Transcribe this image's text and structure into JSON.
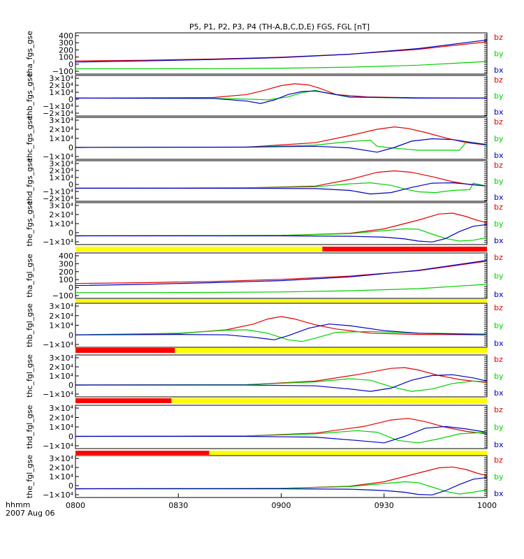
{
  "title": "P5, P1, P2, P3, P4 (TH-A,B,C,D,E) FGS, FGL [nT]",
  "footer": {
    "axis_label": "hhmm",
    "date": "2007 Aug 06"
  },
  "colors": {
    "bz": "#e00000",
    "by": "#00d000",
    "bx": "#0000c0",
    "status_yellow": "#ffff00",
    "status_red": "#ff0000",
    "axis": "#000000"
  },
  "chart_data": {
    "type": "line",
    "x_ticks": [
      "0800",
      "0830",
      "0900",
      "0930",
      "1000"
    ],
    "x_range_minutes": [
      0,
      120
    ],
    "panels": [
      {
        "name": "tha_fgs_gse",
        "ylim": [
          -100,
          450
        ],
        "yticks": [
          "400",
          "300",
          "200",
          "100",
          "0",
          "−100"
        ],
        "series": [
          {
            "name": "bz",
            "x": [
              0,
              20,
              40,
              60,
              80,
              100,
              120
            ],
            "y": [
              75,
              85,
              100,
              125,
              165,
              230,
              330
            ]
          },
          {
            "name": "by",
            "x": [
              0,
              20,
              40,
              60,
              80,
              100,
              120
            ],
            "y": [
              -30,
              -30,
              -28,
              -22,
              -8,
              18,
              68
            ]
          },
          {
            "name": "bx",
            "x": [
              0,
              20,
              40,
              60,
              80,
              100,
              120
            ],
            "y": [
              60,
              75,
              95,
              120,
              165,
              240,
              355
            ]
          }
        ]
      },
      {
        "name": "thb_fgs_gse",
        "ylim": [
          -30000,
          38000
        ],
        "yticks": [
          "3×10⁴",
          "2×10⁴",
          "1×10⁴",
          "0",
          "−1×10⁴",
          "−2×10⁴"
        ],
        "series": [
          {
            "name": "bz",
            "x": [
              0,
              40,
              50,
              55,
              60,
              64,
              68,
              71,
              76,
              85,
              100,
              120
            ],
            "y": [
              0,
              1000,
              6000,
              13000,
              21000,
              24000,
              22000,
              17000,
              6000,
              2000,
              500,
              0
            ]
          },
          {
            "name": "by",
            "x": [
              0,
              40,
              52,
              56,
              62,
              66,
              70,
              72,
              80,
              100,
              120
            ],
            "y": [
              0,
              -500,
              -2000,
              -3000,
              2000,
              9000,
              13000,
              10000,
              1500,
              0,
              0
            ]
          },
          {
            "name": "bx",
            "x": [
              0,
              40,
              50,
              54,
              58,
              62,
              66,
              70,
              74,
              80,
              100,
              120
            ],
            "y": [
              0,
              -500,
              -5000,
              -9000,
              -3000,
              6000,
              11000,
              12000,
              8000,
              2000,
              0,
              0
            ]
          }
        ]
      },
      {
        "name": "thc_fgs_gse",
        "ylim": [
          -15000,
          38000
        ],
        "yticks": [
          "3×10⁴",
          "2×10⁴",
          "1×10⁴",
          "0",
          "−1×10⁴"
        ],
        "series": [
          {
            "name": "bz",
            "x": [
              0,
              50,
              70,
              80,
              88,
              93,
              97,
              102,
              108,
              114,
              120
            ],
            "y": [
              0,
              500,
              6000,
              15000,
              23000,
              26000,
              24000,
              19000,
              12000,
              6000,
              3000
            ]
          },
          {
            "name": "by",
            "x": [
              0,
              50,
              70,
              80,
              86,
              88,
              92,
              96,
              100,
              112,
              114,
              120
            ],
            "y": [
              0,
              500,
              3000,
              7500,
              9000,
              1500,
              -500,
              -2000,
              -3500,
              -3500,
              7000,
              4000
            ]
          },
          {
            "name": "bx",
            "x": [
              0,
              50,
              70,
              80,
              88,
              93,
              98,
              104,
              110,
              116,
              120
            ],
            "y": [
              0,
              500,
              1500,
              -500,
              -6000,
              0,
              8000,
              11000,
              10000,
              6000,
              3000
            ]
          }
        ]
      },
      {
        "name": "thd_fgs_gse",
        "ylim": [
          -18000,
          38000
        ],
        "yticks": [
          "3×10⁴",
          "2×10⁴",
          "1×10⁴",
          "0",
          "−1×10⁴",
          "−2×10⁴"
        ],
        "series": [
          {
            "name": "bz",
            "x": [
              0,
              50,
              70,
              80,
              88,
              93,
              98,
              104,
              110,
              115,
              120
            ],
            "y": [
              0,
              500,
              3000,
              12000,
              22000,
              24000,
              22000,
              16000,
              9000,
              5000,
              3000
            ]
          },
          {
            "name": "by",
            "x": [
              0,
              50,
              70,
              80,
              86,
              92,
              96,
              100,
              105,
              110,
              115,
              116,
              120
            ],
            "y": [
              0,
              500,
              2000,
              6000,
              7500,
              4000,
              -1000,
              -5000,
              -6000,
              -3000,
              -2000,
              7000,
              3000
            ]
          },
          {
            "name": "bx",
            "x": [
              0,
              50,
              70,
              80,
              86,
              92,
              98,
              104,
              110,
              116,
              120
            ],
            "y": [
              0,
              0,
              -500,
              -3000,
              -8000,
              -6000,
              1000,
              7000,
              7500,
              5000,
              3000
            ]
          }
        ]
      },
      {
        "name": "the_fgs_gse",
        "ylim": [
          -10000,
          38000
        ],
        "yticks": [
          "3×10⁴",
          "2×10⁴",
          "1×10⁴",
          "0",
          "−1×10⁴"
        ],
        "series": [
          {
            "name": "bz",
            "x": [
              0,
              60,
              80,
              90,
              100,
              106,
              110,
              114,
              117,
              120
            ],
            "y": [
              0,
              500,
              3000,
              8000,
              18000,
              25000,
              26000,
              22000,
              18000,
              15000
            ]
          },
          {
            "name": "by",
            "x": [
              0,
              60,
              80,
              90,
              96,
              100,
              104,
              108,
              112,
              116,
              120
            ],
            "y": [
              0,
              500,
              2500,
              6000,
              8000,
              7500,
              2000,
              -3000,
              -6000,
              -5000,
              -2000
            ]
          },
          {
            "name": "bx",
            "x": [
              0,
              60,
              80,
              90,
              96,
              100,
              104,
              108,
              112,
              116,
              120
            ],
            "y": [
              0,
              0,
              -500,
              -1500,
              -3500,
              -6000,
              -7000,
              -3000,
              5000,
              11000,
              13000
            ]
          }
        ]
      },
      {
        "name": "tha_fgl_gse",
        "ylim": [
          -100,
          450
        ],
        "yticks": [
          "400",
          "300",
          "200",
          "100",
          "0",
          "−100"
        ],
        "series": [
          {
            "name": "bz",
            "x": [
              0,
              20,
              40,
              60,
              80,
              100,
              120
            ],
            "y": [
              80,
              90,
              105,
              130,
              170,
              235,
              350
            ]
          },
          {
            "name": "by",
            "x": [
              0,
              20,
              40,
              60,
              80,
              100,
              120
            ],
            "y": [
              -30,
              -30,
              -28,
              -22,
              -8,
              18,
              70
            ]
          },
          {
            "name": "bx",
            "x": [
              0,
              20,
              40,
              60,
              80,
              100,
              120
            ],
            "y": [
              55,
              70,
              90,
              115,
              160,
              240,
              360
            ]
          }
        ]
      },
      {
        "name": "thb_fgl_gse",
        "ylim": [
          -15000,
          38000
        ],
        "yticks": [
          "3×10⁴",
          "2×10⁴",
          "1×10⁴",
          "0",
          "−1×10⁴"
        ],
        "series": [
          {
            "name": "bz",
            "x": [
              0,
              30,
              44,
              52,
              56,
              60,
              64,
              70,
              76,
              86,
              100,
              120
            ],
            "y": [
              0,
              1500,
              6000,
              13000,
              19000,
              22000,
              19000,
              12000,
              7000,
              2000,
              500,
              0
            ]
          },
          {
            "name": "by",
            "x": [
              0,
              30,
              44,
              50,
              56,
              62,
              66,
              70,
              76,
              86,
              100,
              120
            ],
            "y": [
              0,
              2000,
              5500,
              6000,
              2000,
              -6000,
              -8000,
              -4000,
              3000,
              4000,
              2000,
              1000
            ]
          },
          {
            "name": "bx",
            "x": [
              0,
              30,
              44,
              52,
              58,
              62,
              68,
              74,
              80,
              90,
              100,
              120
            ],
            "y": [
              0,
              500,
              0,
              -3000,
              -6000,
              -1000,
              8000,
              13000,
              11000,
              5000,
              2000,
              0
            ]
          }
        ]
      },
      {
        "name": "thc_fgl_gse",
        "ylim": [
          -15000,
          38000
        ],
        "yticks": [
          "3×10⁴",
          "2×10⁴",
          "1×10⁴",
          "0",
          "−1×10⁴"
        ],
        "series": [
          {
            "name": "bz",
            "x": [
              0,
              50,
              70,
              82,
              92,
              96,
              100,
              106,
              112,
              120
            ],
            "y": [
              0,
              500,
              5000,
              13000,
              21000,
              22000,
              19000,
              12000,
              7000,
              3000
            ]
          },
          {
            "name": "by",
            "x": [
              0,
              50,
              70,
              80,
              86,
              92,
              98,
              104,
              110,
              116,
              120
            ],
            "y": [
              0,
              500,
              4000,
              8000,
              6000,
              -2000,
              -8000,
              -5000,
              2000,
              5000,
              4000
            ]
          },
          {
            "name": "bx",
            "x": [
              0,
              50,
              70,
              80,
              86,
              92,
              98,
              104,
              110,
              116,
              120
            ],
            "y": [
              0,
              0,
              -1000,
              -5000,
              -8000,
              -4000,
              6000,
              12000,
              13000,
              9000,
              5000
            ]
          }
        ]
      },
      {
        "name": "thd_fgl_gse",
        "ylim": [
          -15000,
          38000
        ],
        "yticks": [
          "3×10⁴",
          "2×10⁴",
          "1×10⁴",
          "0",
          "−1×10⁴"
        ],
        "series": [
          {
            "name": "bz",
            "x": [
              0,
              50,
              70,
              84,
              92,
              97,
              102,
              108,
              114,
              120
            ],
            "y": [
              0,
              500,
              4000,
              12000,
              20000,
              22000,
              18000,
              11000,
              6000,
              3000
            ]
          },
          {
            "name": "by",
            "x": [
              0,
              50,
              70,
              82,
              88,
              94,
              100,
              106,
              112,
              120
            ],
            "y": [
              0,
              500,
              3000,
              7000,
              5000,
              -5000,
              -8000,
              -3000,
              3000,
              5000
            ]
          },
          {
            "name": "bx",
            "x": [
              0,
              50,
              70,
              82,
              90,
              96,
              102,
              108,
              114,
              120
            ],
            "y": [
              0,
              0,
              -1000,
              -5000,
              -8000,
              0,
              10000,
              12000,
              9000,
              5000
            ]
          }
        ]
      },
      {
        "name": "the_fgl_gse",
        "ylim": [
          -10000,
          38000
        ],
        "yticks": [
          "3×10⁴",
          "2×10⁴",
          "1×10⁴",
          "0",
          "−1×10⁴"
        ],
        "series": [
          {
            "name": "bz",
            "x": [
              0,
              60,
              80,
              90,
              100,
              106,
              110,
              114,
              117,
              120
            ],
            "y": [
              0,
              500,
              3000,
              8000,
              18000,
              24000,
              25000,
              22000,
              18000,
              15000
            ]
          },
          {
            "name": "by",
            "x": [
              0,
              60,
              80,
              90,
              96,
              100,
              104,
              108,
              112,
              116,
              120
            ],
            "y": [
              0,
              500,
              2500,
              6000,
              8000,
              7000,
              2000,
              -3000,
              -6000,
              -4000,
              -1000
            ]
          },
          {
            "name": "bx",
            "x": [
              0,
              60,
              80,
              90,
              96,
              100,
              104,
              108,
              112,
              116,
              120
            ],
            "y": [
              0,
              0,
              -500,
              -2000,
              -4000,
              -6500,
              -7000,
              -2000,
              5000,
              11000,
              13000
            ]
          }
        ]
      }
    ],
    "legend": [
      "bz",
      "by",
      "bx"
    ],
    "status_bars": [
      {
        "after_panel": 4,
        "segments": [
          {
            "from": 0,
            "to": 72,
            "color": "yellow"
          },
          {
            "from": 72,
            "to": 120,
            "color": "red"
          }
        ]
      },
      {
        "after_panel": 5,
        "segments": [
          {
            "from": 0,
            "to": 120,
            "color": "yellow"
          }
        ]
      },
      {
        "after_panel": 6,
        "segments": [
          {
            "from": 0,
            "to": 29,
            "color": "red"
          },
          {
            "from": 29,
            "to": 120,
            "color": "yellow"
          }
        ]
      },
      {
        "after_panel": 7,
        "segments": [
          {
            "from": 0,
            "to": 28,
            "color": "red"
          },
          {
            "from": 28,
            "to": 120,
            "color": "yellow"
          }
        ]
      },
      {
        "after_panel": 8,
        "segments": [
          {
            "from": 0,
            "to": 39,
            "color": "red"
          },
          {
            "from": 39,
            "to": 120,
            "color": "yellow"
          }
        ]
      }
    ]
  }
}
